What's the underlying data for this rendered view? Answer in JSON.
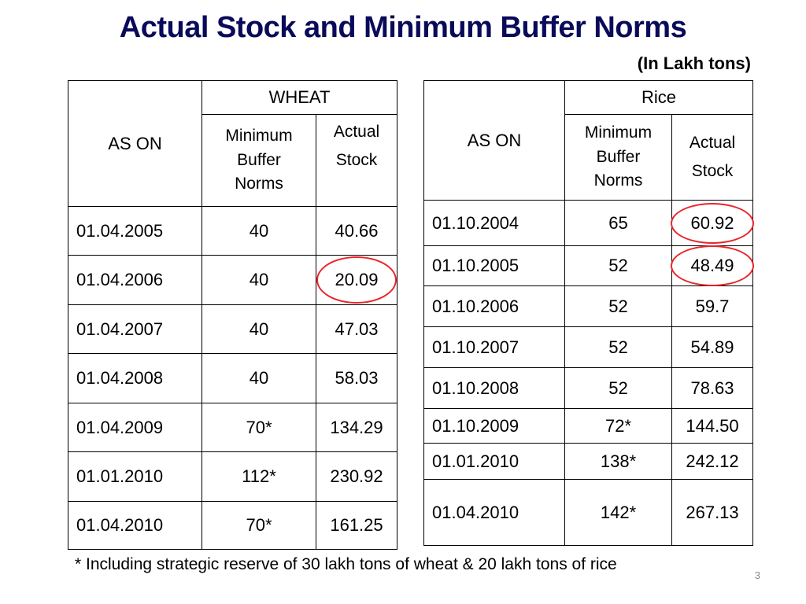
{
  "title": "Actual Stock and Minimum Buffer Norms",
  "units": "(In Lakh tons)",
  "wheat": {
    "as_on": "AS ON",
    "group": "WHEAT",
    "col_min": [
      "Minimum",
      "Buffer",
      "Norms"
    ],
    "col_actual": [
      "Actual",
      "Stock"
    ],
    "rows": [
      {
        "date": "01.04.2005",
        "min": "40",
        "actual": "40.66"
      },
      {
        "date": "01.04.2006",
        "min": "40",
        "actual": "20.09",
        "circled": true
      },
      {
        "date": "01.04.2007",
        "min": "40",
        "actual": "47.03"
      },
      {
        "date": "01.04.2008",
        "min": "40",
        "actual": "58.03"
      },
      {
        "date": "01.04.2009",
        "min": "70*",
        "actual": "134.29"
      },
      {
        "date": "01.01.2010",
        "min": "112*",
        "actual": "230.92"
      },
      {
        "date": "01.04.2010",
        "min": "70*",
        "actual": "161.25"
      }
    ]
  },
  "rice": {
    "as_on": "AS ON",
    "group": "Rice",
    "col_min": [
      "Minimum",
      "Buffer",
      "Norms"
    ],
    "col_actual": [
      "Actual",
      "Stock"
    ],
    "rows": [
      {
        "date": "01.10.2004",
        "min": "65",
        "actual": "60.92",
        "circled": true
      },
      {
        "date": "01.10.2005",
        "min": "52",
        "actual": "48.49",
        "circled": true
      },
      {
        "date": "01.10.2006",
        "min": "52",
        "actual": "59.7"
      },
      {
        "date": "01.10.2007",
        "min": "52",
        "actual": "54.89"
      },
      {
        "date": "01.10.2008",
        "min": "52",
        "actual": "78.63"
      },
      {
        "date": "01.10.2009",
        "min": "72*",
        "actual": "144.50"
      },
      {
        "date": "01.01.2010",
        "min": "138*",
        "actual": "242.12"
      },
      {
        "date": "01.04.2010",
        "min": "142*",
        "actual": "267.13"
      }
    ]
  },
  "footnote": "* Including strategic reserve of 30 lakh tons of wheat & 20 lakh tons of rice",
  "page_number": "3",
  "highlight_color": "#e8262b",
  "title_color": "#0a0a5a"
}
